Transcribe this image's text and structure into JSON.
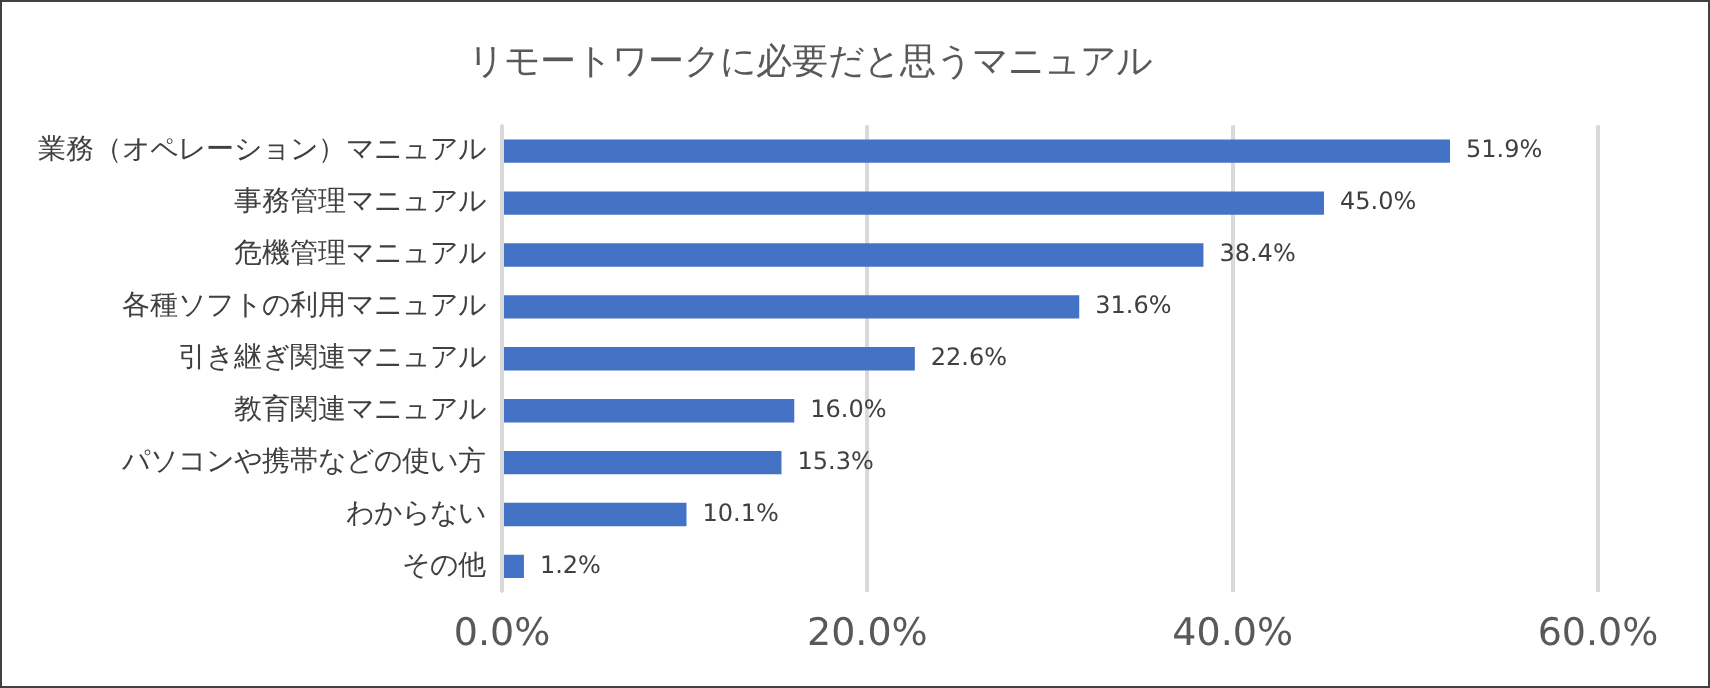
{
  "chart_data": {
    "type": "bar",
    "orientation": "horizontal",
    "title": "リモートワークに必要だと思うマニュアル",
    "categories": [
      "業務（オペレーション）マニュアル",
      "事務管理マニュアル",
      "危機管理マニュアル",
      "各種ソフトの利用マニュアル",
      "引き継ぎ関連マニュアル",
      "教育関連マニュアル",
      "パソコンや携帯などの使い方",
      "わからない",
      "その他"
    ],
    "values": [
      51.9,
      45.0,
      38.4,
      31.6,
      22.6,
      16.0,
      15.3,
      10.1,
      1.2
    ],
    "value_labels": [
      "51.9%",
      "45.0%",
      "38.4%",
      "31.6%",
      "22.6%",
      "16.0%",
      "15.3%",
      "10.1%",
      "1.2%"
    ],
    "color": "#4472c4",
    "xlim": [
      0,
      60
    ],
    "xticks": [
      {
        "value": 0,
        "label": "0.0%"
      },
      {
        "value": 20,
        "label": "20.0%"
      },
      {
        "value": 40,
        "label": "40.0%"
      },
      {
        "value": 60,
        "label": "60.0%"
      }
    ],
    "grid": "x",
    "legend": false
  }
}
